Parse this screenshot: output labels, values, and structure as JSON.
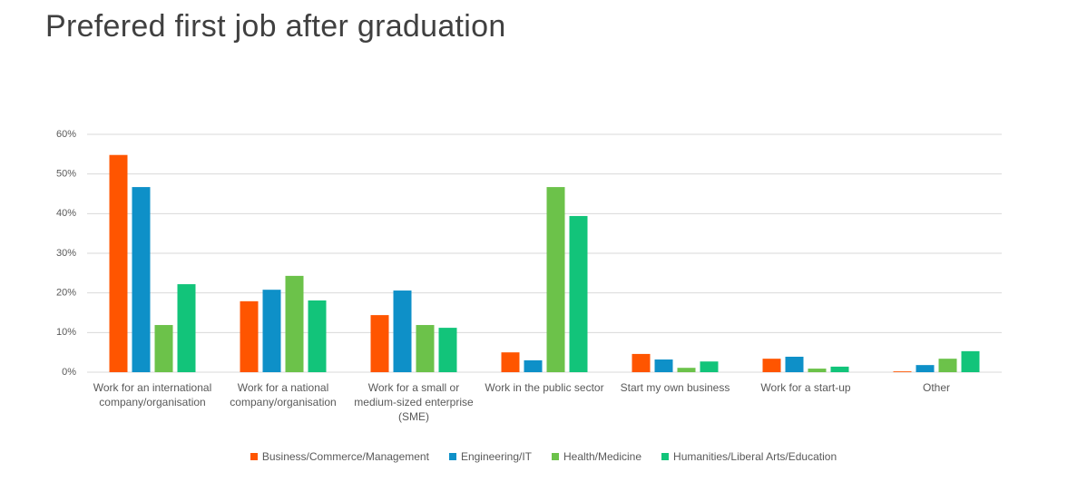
{
  "chart_data": {
    "type": "bar",
    "title": "Prefered first job after graduation",
    "categories": [
      "Work for an international company/organisation",
      "Work for a national company/organisation",
      "Work for a small or medium-sized enterprise (SME)",
      "Work in the public sector",
      "Start my own business",
      "Work for a start-up",
      "Other"
    ],
    "series": [
      {
        "name": "Business/Commerce/Management",
        "color": "#ff5500",
        "values": [
          54.8,
          17.9,
          14.4,
          5.0,
          4.6,
          3.4,
          0.2
        ]
      },
      {
        "name": "Engineering/IT",
        "color": "#0e90c8",
        "values": [
          46.7,
          20.8,
          20.6,
          3.0,
          3.2,
          3.9,
          1.8
        ]
      },
      {
        "name": "Health/Medicine",
        "color": "#6cc24a",
        "values": [
          11.9,
          24.3,
          11.9,
          46.7,
          1.1,
          0.9,
          3.4
        ]
      },
      {
        "name": "Humanities/Liberal Arts/Education",
        "color": "#12c47a",
        "values": [
          22.2,
          18.1,
          11.2,
          39.4,
          2.7,
          1.4,
          5.3
        ]
      }
    ],
    "ylim": [
      0,
      60
    ],
    "yticks": [
      {
        "value": 0,
        "label": "0%"
      },
      {
        "value": 10,
        "label": "10%"
      },
      {
        "value": 20,
        "label": "20%"
      },
      {
        "value": 30,
        "label": "30%"
      },
      {
        "value": 40,
        "label": "40%"
      },
      {
        "value": 50,
        "label": "50%"
      },
      {
        "value": 60,
        "label": "60%"
      }
    ],
    "grid": true
  }
}
